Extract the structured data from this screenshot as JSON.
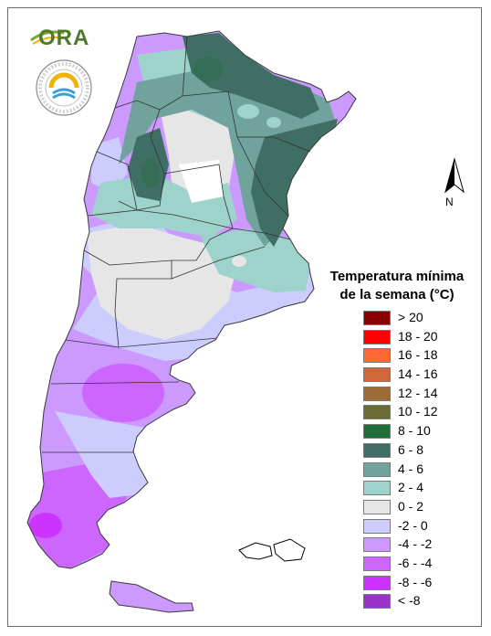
{
  "branding": {
    "logo_text": "ORA",
    "seal_text": "SERVICIO METEOROLÓGICO NACIONAL · ARGENTINA"
  },
  "compass": {
    "north_label": "N"
  },
  "legend": {
    "title_line1": "Temperatura mínima",
    "title_line2": "de la semana (°C)",
    "classes": [
      {
        "label": "> 20",
        "color": "#8b0000"
      },
      {
        "label": "18 - 20",
        "color": "#ff0000"
      },
      {
        "label": "16 - 18",
        "color": "#ff6a33"
      },
      {
        "label": "14 - 16",
        "color": "#d2683a"
      },
      {
        "label": "12 - 14",
        "color": "#9c6b37"
      },
      {
        "label": "10 - 12",
        "color": "#6b6b35"
      },
      {
        "label": "8 - 10",
        "color": "#1f6e3a"
      },
      {
        "label": "6 - 8",
        "color": "#3f6e64"
      },
      {
        "label": "4 - 6",
        "color": "#6fa39b"
      },
      {
        "label": "2 - 4",
        "color": "#9ed3cb"
      },
      {
        "label": "0 - 2",
        "color": "#e6e6e6"
      },
      {
        "label": "-2 - 0",
        "color": "#ccccff"
      },
      {
        "label": "-4 - -2",
        "color": "#cc99ff"
      },
      {
        "label": "-6 - -4",
        "color": "#cc66ff"
      },
      {
        "label": "-8 - -6",
        "color": "#cc33ff"
      },
      {
        "label": "< -8",
        "color": "#9933cc"
      }
    ]
  }
}
